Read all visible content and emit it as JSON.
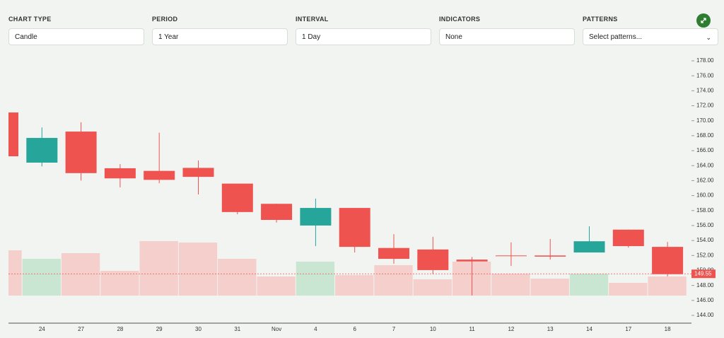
{
  "controls": [
    {
      "label": "CHART TYPE",
      "value": "Candle"
    },
    {
      "label": "PERIOD",
      "value": "1 Year"
    },
    {
      "label": "INTERVAL",
      "value": "1 Day"
    },
    {
      "label": "INDICATORS",
      "value": "None"
    },
    {
      "label": "PATTERNS",
      "value": "Select patterns..."
    }
  ],
  "chart_data": {
    "type": "candlestick",
    "categories": [
      null,
      "24",
      "27",
      "28",
      "29",
      "30",
      "31",
      "Nov",
      "4",
      "6",
      "7",
      "10",
      "11",
      "12",
      "13",
      "14",
      "17",
      "18"
    ],
    "open": [
      171.1,
      164.4,
      168.55,
      163.65,
      163.3,
      163.7,
      161.6,
      158.9,
      156.0,
      158.35,
      153.0,
      152.8,
      151.45,
      152.0,
      152.0,
      152.4,
      155.45,
      153.15
    ],
    "high": [
      171.1,
      169.1,
      169.8,
      164.2,
      168.4,
      164.7,
      161.6,
      158.9,
      159.6,
      158.35,
      154.85,
      154.5,
      151.8,
      153.75,
      154.2,
      155.9,
      155.45,
      153.8
    ],
    "low": [
      165.25,
      163.9,
      162.0,
      161.1,
      161.65,
      160.15,
      157.5,
      156.4,
      153.25,
      152.4,
      150.9,
      149.5,
      146.65,
      150.6,
      151.45,
      152.4,
      153.05,
      149.2
    ],
    "close": [
      165.25,
      167.7,
      163.0,
      162.3,
      162.1,
      162.5,
      157.8,
      156.75,
      158.35,
      153.15,
      151.55,
      150.05,
      151.2,
      151.95,
      151.85,
      153.9,
      153.25,
      149.5
    ],
    "volume": [
      64,
      52,
      60,
      35,
      77,
      75,
      52,
      27,
      48,
      29,
      43,
      23,
      48,
      31,
      24,
      31,
      18,
      27
    ],
    "up_color": "#26a69a",
    "down_color": "#ef5350",
    "up_volume_color": "#c9e6d2",
    "down_volume_color": "#f5cfcb",
    "current_price": 149.55,
    "ylim": [
      144,
      178
    ],
    "yticks": [
      {
        "value": 144,
        "label": "144.00"
      },
      {
        "value": 146,
        "label": "146.00"
      },
      {
        "value": 148,
        "label": "148.00"
      },
      {
        "value": 150,
        "label": "150.00"
      },
      {
        "value": 152,
        "label": "152.00"
      },
      {
        "value": 154,
        "label": "154.00"
      },
      {
        "value": 156,
        "label": "156.00"
      },
      {
        "value": 158,
        "label": "158.00"
      },
      {
        "value": 160,
        "label": "160.00"
      },
      {
        "value": 162,
        "label": "162.00"
      },
      {
        "value": 164,
        "label": "164.00"
      },
      {
        "value": 166,
        "label": "166.00"
      },
      {
        "value": 168,
        "label": "168.00"
      },
      {
        "value": 170,
        "label": "170.00"
      },
      {
        "value": 172,
        "label": "172.00"
      },
      {
        "value": 174,
        "label": "174.00"
      },
      {
        "value": 176,
        "label": "176.00"
      },
      {
        "value": 178,
        "label": "178.00"
      }
    ]
  }
}
